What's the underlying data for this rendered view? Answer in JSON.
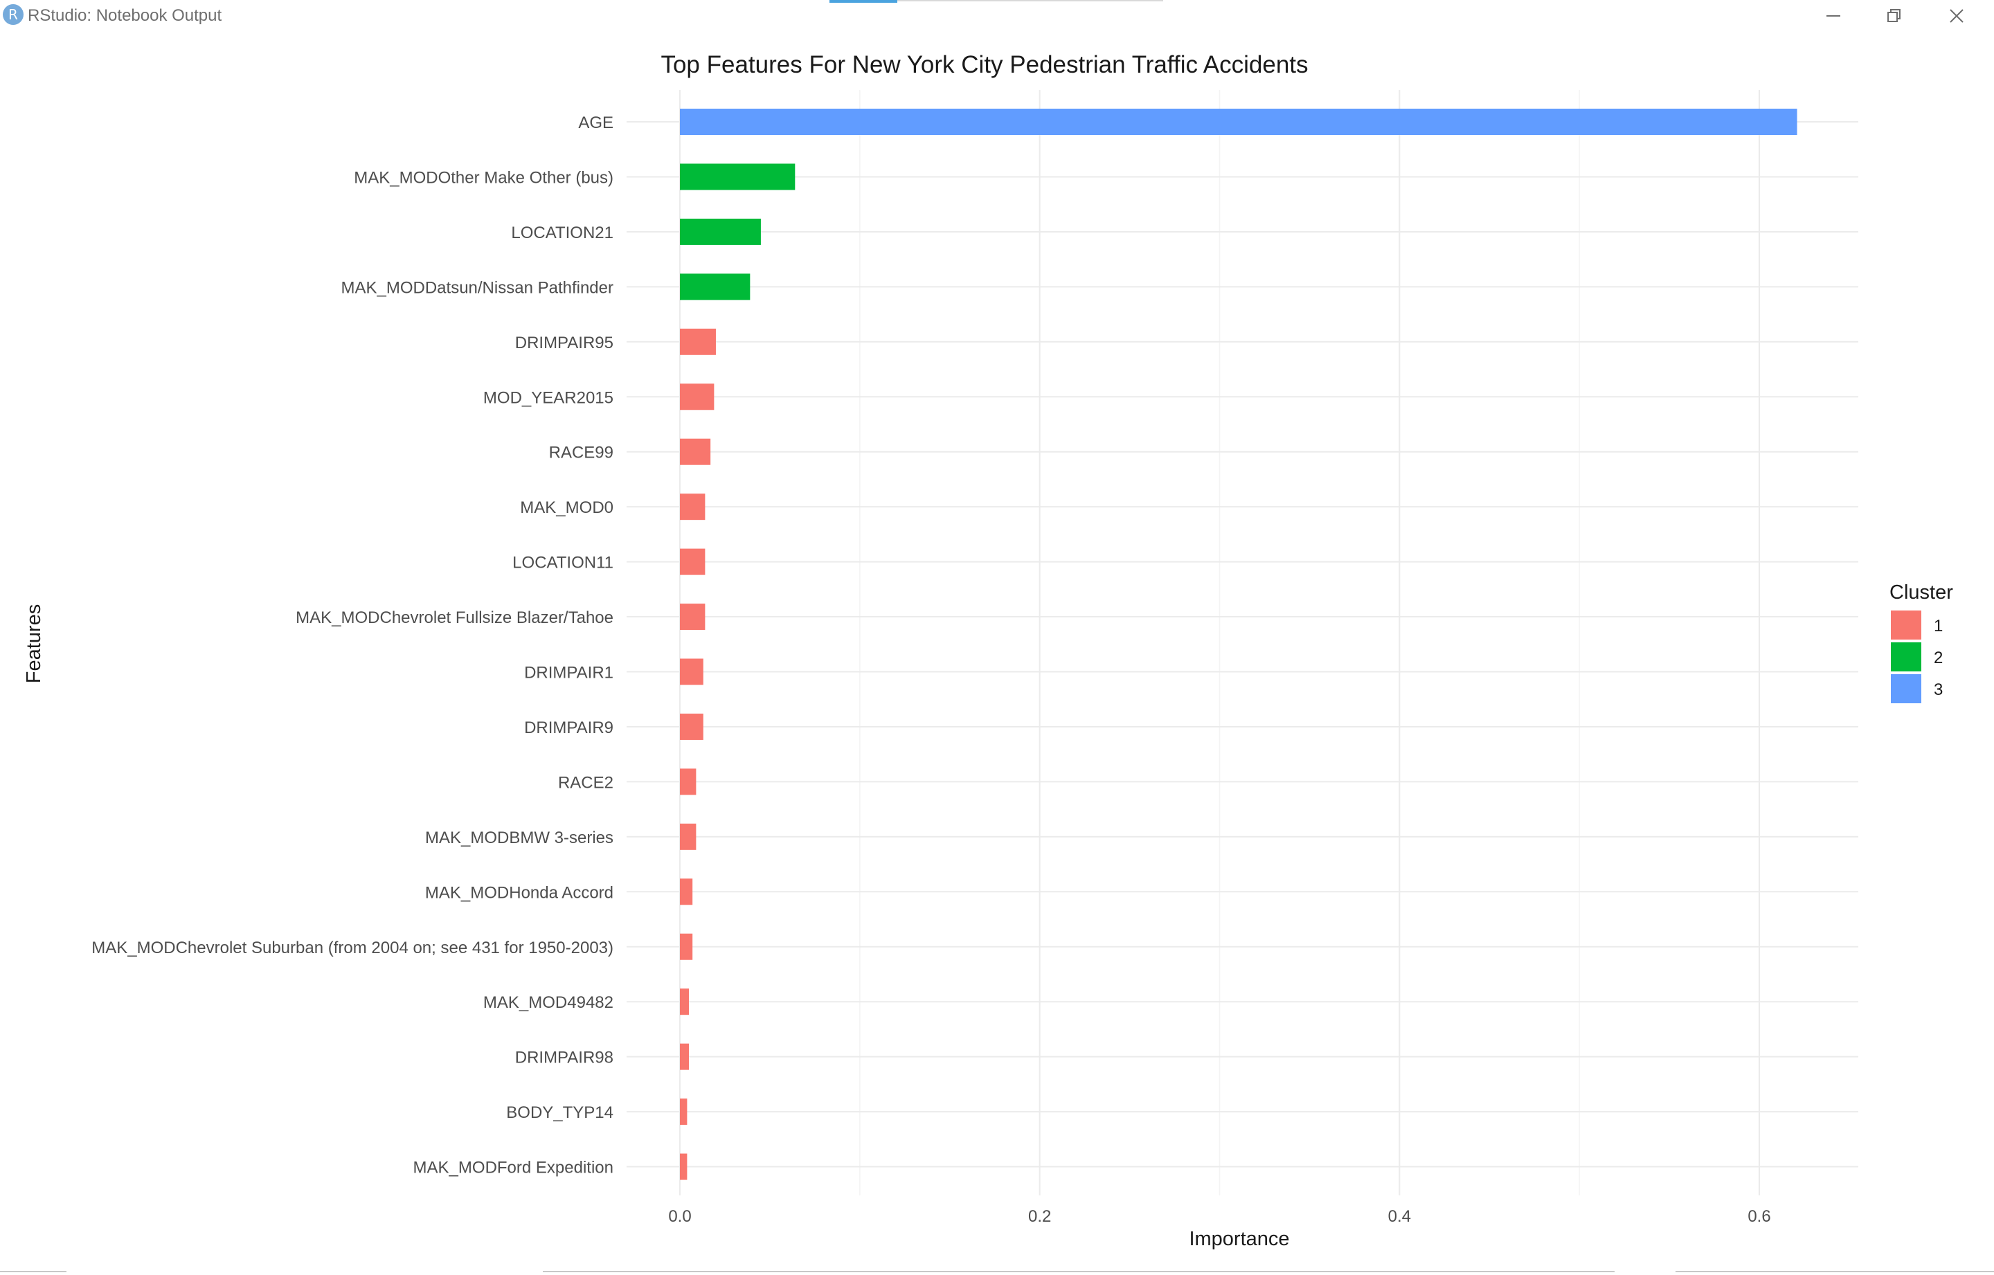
{
  "window": {
    "title": "RStudio: Notebook Output",
    "logo_letter": "R"
  },
  "colors": {
    "accent": "#4aa3df",
    "cluster_1": "#F8766D",
    "cluster_2": "#00BA38",
    "cluster_3": "#619CFF"
  },
  "icons": {
    "minimize": "minimize-icon",
    "restore": "restore-icon",
    "close": "close-icon"
  },
  "chart_data": {
    "type": "bar",
    "orientation": "horizontal",
    "title": "Top Features For New York City Pedestrian Traffic Accidents",
    "xlabel": "Importance",
    "ylabel": "Features",
    "xlim": [
      -0.0,
      0.65
    ],
    "x_ticks": [
      0.0,
      0.2,
      0.4,
      0.6
    ],
    "x_tick_labels": [
      "0.0",
      "0.2",
      "0.4",
      "0.6"
    ],
    "grid": true,
    "legend": {
      "title": "Cluster",
      "placement": "right",
      "entries": [
        {
          "label": "1",
          "color": "#F8766D"
        },
        {
          "label": "2",
          "color": "#00BA38"
        },
        {
          "label": "3",
          "color": "#619CFF"
        }
      ]
    },
    "categories": [
      "AGE",
      "MAK_MODOther Make Other (bus)",
      "LOCATION21",
      "MAK_MODDatsun/Nissan Pathfinder",
      "DRIMPAIR95",
      "MOD_YEAR2015",
      "RACE99",
      "MAK_MOD0",
      "LOCATION11",
      "MAK_MODChevrolet Fullsize Blazer/Tahoe",
      "DRIMPAIR1",
      "DRIMPAIR9",
      "RACE2",
      "MAK_MODBMW 3-series",
      "MAK_MODHonda Accord",
      "MAK_MODChevrolet Suburban (from 2004 on; see 431 for 1950-2003)",
      "MAK_MOD49482",
      "DRIMPAIR98",
      "BODY_TYP14",
      "MAK_MODFord Expedition"
    ],
    "values": [
      0.621,
      0.064,
      0.045,
      0.039,
      0.02,
      0.019,
      0.017,
      0.014,
      0.014,
      0.014,
      0.013,
      0.013,
      0.009,
      0.009,
      0.007,
      0.007,
      0.005,
      0.005,
      0.004,
      0.004
    ],
    "cluster": [
      "3",
      "2",
      "2",
      "2",
      "1",
      "1",
      "1",
      "1",
      "1",
      "1",
      "1",
      "1",
      "1",
      "1",
      "1",
      "1",
      "1",
      "1",
      "1",
      "1"
    ]
  }
}
